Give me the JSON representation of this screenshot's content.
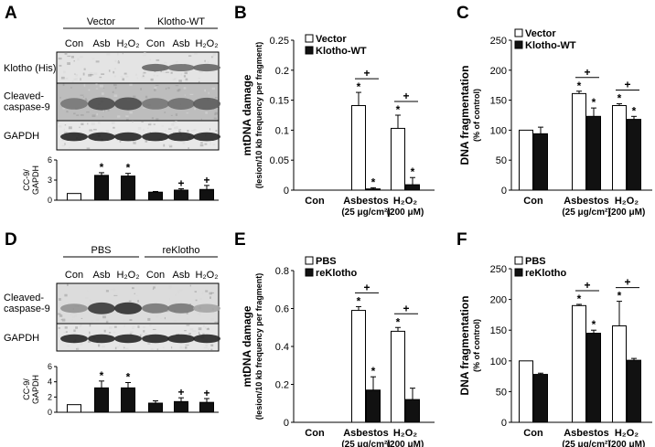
{
  "figure": {
    "panel_labels": [
      "A",
      "B",
      "C",
      "D",
      "E",
      "F"
    ],
    "blot_A": {
      "groups": [
        "Vector",
        "Klotho-WT"
      ],
      "lanes": [
        "Con",
        "Asb",
        "H₂O₂",
        "Con",
        "Asb",
        "H₂O₂"
      ],
      "rows": [
        "Klotho (His)",
        "Cleaved-\ncaspase-9",
        "GAPDH"
      ]
    },
    "blot_D": {
      "groups": [
        "PBS",
        "reKlotho"
      ],
      "lanes": [
        "Con",
        "Asb",
        "H₂O₂",
        "Con",
        "Asb",
        "H₂O₂"
      ],
      "rows": [
        "Cleaved-\ncaspase-9",
        "GAPDH"
      ]
    }
  },
  "chart_data": [
    {
      "id": "A-inset",
      "type": "bar",
      "ylabel": "CC-9/\nGAPDH",
      "ylim": [
        0,
        6
      ],
      "yticks": [
        0,
        3,
        6
      ],
      "values": [
        1.0,
        3.7,
        3.6,
        1.2,
        1.5,
        1.6
      ],
      "errors": [
        0,
        0.4,
        0.4,
        0.1,
        0.2,
        0.6
      ],
      "fills": [
        "white",
        "black",
        "black",
        "black",
        "black",
        "black"
      ],
      "marks": [
        "",
        "*",
        "*",
        "",
        "+",
        "+"
      ]
    },
    {
      "id": "D-inset",
      "type": "bar",
      "ylabel": "CC-9/\nGAPDH",
      "ylim": [
        0,
        6
      ],
      "yticks": [
        0,
        2,
        4,
        6
      ],
      "values": [
        1.0,
        3.2,
        3.2,
        1.2,
        1.4,
        1.3
      ],
      "errors": [
        0,
        0.9,
        0.7,
        0.3,
        0.5,
        0.5
      ],
      "fills": [
        "white",
        "black",
        "black",
        "black",
        "black",
        "black"
      ],
      "marks": [
        "",
        "*",
        "*",
        "",
        "+",
        "+"
      ]
    },
    {
      "id": "B",
      "type": "bar",
      "ylabel": "mtDNA damage",
      "ylabel2": "(lesion/10 kb frequency per fragment)",
      "ylim": [
        0,
        0.25
      ],
      "yticks": [
        "0",
        "0.05",
        "0.1",
        "0.15",
        "0.2",
        "0.25"
      ],
      "categories": [
        "Con",
        "Asbestos\n(25 μg/cm²)",
        "H₂O₂\n(200 μM)"
      ],
      "series": [
        {
          "name": "Vector",
          "values": [
            0,
            0.141,
            0.103
          ],
          "errors": [
            0,
            0.022,
            0.022
          ],
          "fill": "white",
          "marks": [
            "",
            "*",
            "*"
          ]
        },
        {
          "name": "Klotho-WT",
          "values": [
            0,
            0.002,
            0.009
          ],
          "errors": [
            0,
            0.002,
            0.012
          ],
          "fill": "black",
          "marks": [
            "",
            "*",
            "*"
          ]
        }
      ],
      "brackets": [
        "+",
        "+"
      ]
    },
    {
      "id": "C",
      "type": "bar",
      "ylabel": "DNA fragmentation",
      "ylabel2": "(% of control)",
      "ylim": [
        0,
        250
      ],
      "yticks": [
        "0",
        "50",
        "100",
        "150",
        "200",
        "250"
      ],
      "categories": [
        "Con",
        "Asbestos\n(25 μg/cm²)",
        "H₂O₂\n(200 μM)"
      ],
      "series": [
        {
          "name": "Vector",
          "values": [
            100,
            161,
            141
          ],
          "errors": [
            0,
            4,
            3
          ],
          "fill": "white",
          "marks": [
            "",
            "*",
            "*"
          ]
        },
        {
          "name": "Klotho-WT",
          "values": [
            94,
            123,
            118
          ],
          "errors": [
            11,
            14,
            5
          ],
          "fill": "black",
          "marks": [
            "",
            "*",
            "*"
          ]
        }
      ],
      "brackets": [
        "+",
        "+"
      ]
    },
    {
      "id": "E",
      "type": "bar",
      "ylabel": "mtDNA damage",
      "ylabel2": "(lesion/10 kb frequency per fragment)",
      "ylim": [
        0,
        0.8
      ],
      "yticks": [
        "0",
        "0.2",
        "0.4",
        "0.6",
        "0.8"
      ],
      "categories": [
        "Con",
        "Asbestos\n(25 μg/cm²)",
        "H₂O₂\n(200 μM)"
      ],
      "series": [
        {
          "name": "PBS",
          "values": [
            0,
            0.59,
            0.48
          ],
          "errors": [
            0,
            0.02,
            0.02
          ],
          "fill": "white",
          "marks": [
            "",
            "*",
            "*"
          ]
        },
        {
          "name": "reKlotho",
          "values": [
            0,
            0.17,
            0.12
          ],
          "errors": [
            0,
            0.07,
            0.06
          ],
          "fill": "black",
          "marks": [
            "",
            "*",
            ""
          ]
        }
      ],
      "brackets": [
        "+",
        "+"
      ]
    },
    {
      "id": "F",
      "type": "bar",
      "ylabel": "DNA fragmentation",
      "ylabel2": "(% of control)",
      "ylim": [
        0,
        250
      ],
      "yticks": [
        "0",
        "50",
        "100",
        "150",
        "200",
        "250"
      ],
      "categories": [
        "Con",
        "Asbestos\n(25 μg/cm²)",
        "H₂O₂\n(200 μM)"
      ],
      "series": [
        {
          "name": "PBS",
          "values": [
            100,
            190,
            157
          ],
          "errors": [
            0,
            2,
            40
          ],
          "fill": "white",
          "marks": [
            "",
            "*",
            "*"
          ]
        },
        {
          "name": "reKlotho",
          "values": [
            78,
            145,
            101
          ],
          "errors": [
            2,
            5,
            3
          ],
          "fill": "black",
          "marks": [
            "",
            "*",
            ""
          ]
        }
      ],
      "brackets": [
        "+",
        "+"
      ]
    }
  ]
}
